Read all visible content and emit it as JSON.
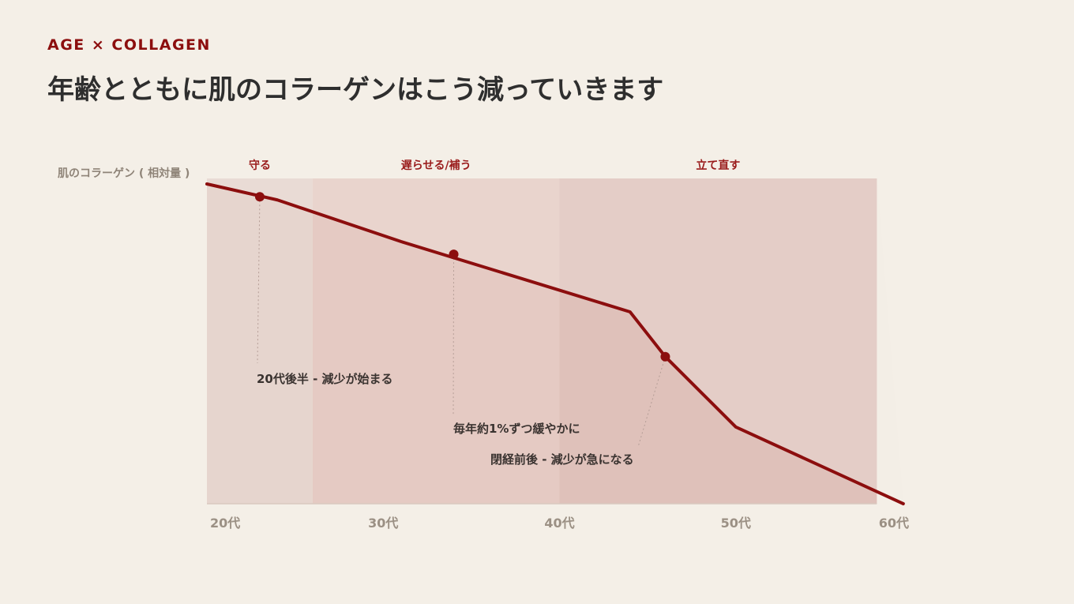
{
  "header": {
    "eyebrow": "AGE × COLLAGEN",
    "title": "年齢とともに肌のコラーゲンはこう減っていきます"
  },
  "colors": {
    "background": "#f4efe7",
    "accent": "#8c0e0e",
    "band_1": "#e6d5ce",
    "band_2": "#e5cac3",
    "band_3": "#dfc1ba",
    "upper_tint": "#f1ebe6"
  },
  "chart_data": {
    "type": "line",
    "ylabel": "肌のコラーゲン ( 相対量 )",
    "xlabel": "",
    "x_ticks": [
      {
        "label": "20代",
        "x": 20
      },
      {
        "label": "30代",
        "x": 30
      },
      {
        "label": "40代",
        "x": 40
      },
      {
        "label": "50代",
        "x": 50
      },
      {
        "label": "60代",
        "x": 60
      }
    ],
    "xlim": [
      20,
      60
    ],
    "ylim": [
      0,
      100
    ],
    "series": [
      {
        "x": [
          20,
          24,
          31,
          44,
          46,
          50,
          59.5
        ],
        "y": [
          100,
          95,
          82,
          60,
          46,
          24,
          0
        ]
      }
    ],
    "bands": [
      {
        "label": "守る",
        "from": 20,
        "to": 26
      },
      {
        "label": "遅らせる/補う",
        "from": 26,
        "to": 40
      },
      {
        "label": "立て直す",
        "from": 40,
        "to": 58
      }
    ],
    "annotations": [
      {
        "text": "20代後半 - 減少が始まる",
        "x": 23,
        "y": 96
      },
      {
        "text": "毎年約1%ずつ緩やかに",
        "x": 34,
        "y": 78
      },
      {
        "text": "閉経前後 - 減少が急になる",
        "x": 46,
        "y": 46
      }
    ],
    "grid": false,
    "legend": "none"
  }
}
